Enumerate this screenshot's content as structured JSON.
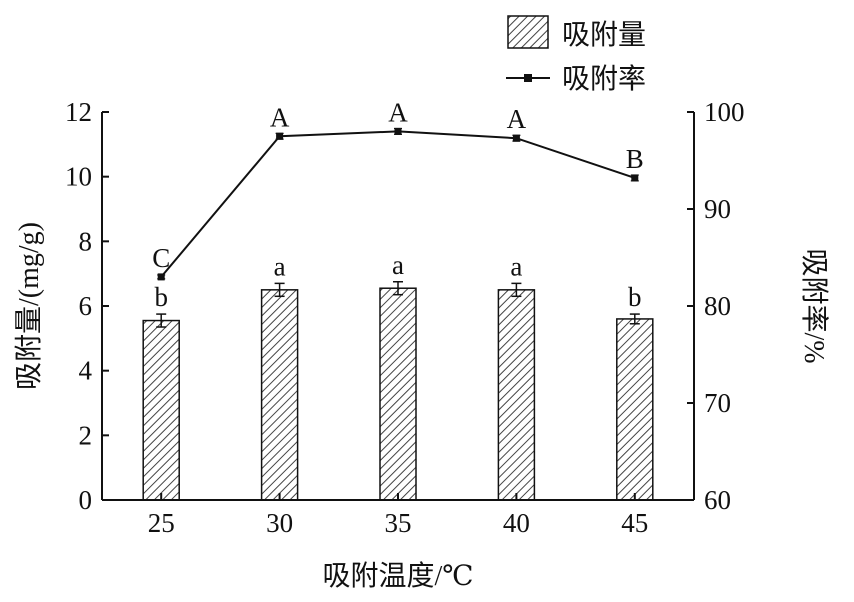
{
  "chart_data": {
    "type": "bar",
    "xlabel": "吸附温度/℃",
    "ylabel_left": "吸附量/(mg/g)",
    "ylabel_right": "吸附率/%",
    "categories": [
      "25",
      "30",
      "35",
      "40",
      "45"
    ],
    "ylim_left": [
      0,
      12
    ],
    "ylim_right": [
      60,
      100
    ],
    "yticks_left": [
      "0",
      "2",
      "4",
      "6",
      "8",
      "10",
      "12"
    ],
    "yticks_right": [
      "60",
      "70",
      "80",
      "90",
      "100"
    ],
    "grid": false,
    "legend_position": "top-right",
    "legend": [
      "吸附量",
      "吸附率"
    ],
    "series": [
      {
        "name": "吸附量",
        "type": "bar",
        "axis": "left",
        "values": [
          5.55,
          6.5,
          6.55,
          6.5,
          5.6
        ],
        "errors": [
          0.2,
          0.2,
          0.2,
          0.2,
          0.15
        ],
        "letters": [
          "b",
          "a",
          "a",
          "a",
          "b"
        ],
        "pattern": "diagonal-hatch"
      },
      {
        "name": "吸附率",
        "type": "line",
        "axis": "right",
        "values": [
          83.0,
          97.5,
          98.0,
          97.3,
          93.2
        ],
        "errors": [
          0.2,
          0.3,
          0.3,
          0.3,
          0.3
        ],
        "letters": [
          "C",
          "A",
          "A",
          "A",
          "B"
        ],
        "marker": "square",
        "color": "#111111"
      }
    ]
  }
}
